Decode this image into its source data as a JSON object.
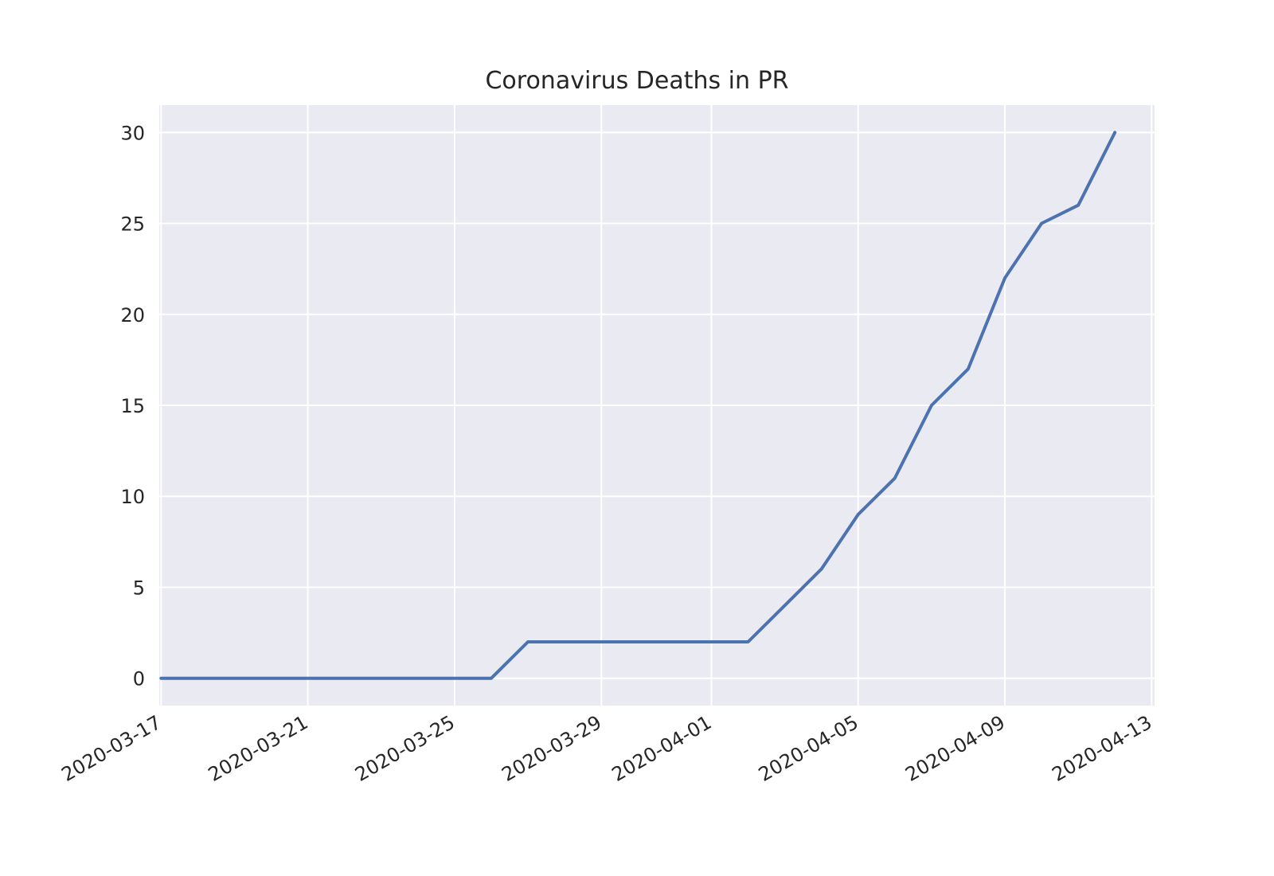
{
  "chart_data": {
    "type": "line",
    "title": "Coronavirus Deaths in PR",
    "xlabel": "",
    "ylabel": "",
    "x_axis": "date",
    "x_ticks": [
      "2020-03-17",
      "2020-03-21",
      "2020-03-25",
      "2020-03-29",
      "2020-04-01",
      "2020-04-05",
      "2020-04-09",
      "2020-04-13"
    ],
    "y_ticks": [
      0,
      5,
      10,
      15,
      20,
      25,
      30
    ],
    "xlim": [
      "2020-03-16",
      "2020-04-13"
    ],
    "ylim": [
      -1.5,
      31.5
    ],
    "grid": true,
    "legend": "none",
    "series": [
      {
        "color": "#4c72b0",
        "x": [
          "2020-03-17",
          "2020-03-18",
          "2020-03-19",
          "2020-03-20",
          "2020-03-21",
          "2020-03-22",
          "2020-03-23",
          "2020-03-24",
          "2020-03-25",
          "2020-03-26",
          "2020-03-27",
          "2020-03-28",
          "2020-03-29",
          "2020-03-30",
          "2020-03-31",
          "2020-04-01",
          "2020-04-02",
          "2020-04-03",
          "2020-04-04",
          "2020-04-05",
          "2020-04-06",
          "2020-04-07",
          "2020-04-08",
          "2020-04-09",
          "2020-04-10",
          "2020-04-11",
          "2020-04-12"
        ],
        "y": [
          0,
          0,
          0,
          0,
          0,
          0,
          0,
          0,
          0,
          0,
          2,
          2,
          2,
          2,
          2,
          2,
          2,
          4,
          6,
          9,
          11,
          15,
          17,
          22,
          25,
          26,
          30
        ]
      }
    ]
  },
  "style": {
    "background": "#eaeaf2",
    "grid_color": "#ffffff",
    "text_color": "#262626"
  }
}
